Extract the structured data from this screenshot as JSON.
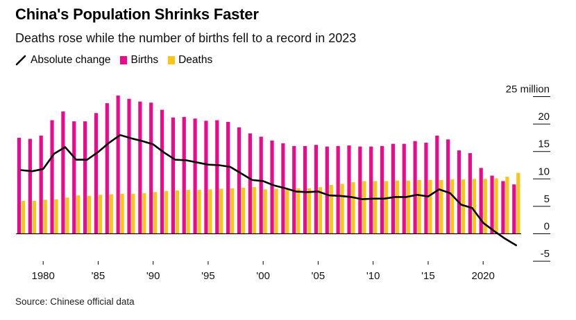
{
  "header": {
    "title": "China's Population Shrinks Faster",
    "subtitle": "Deaths rose while the number of births fell to a record in 2023"
  },
  "legend": {
    "items": [
      {
        "label": "Absolute change",
        "kind": "line",
        "color": "#000000"
      },
      {
        "label": "Births",
        "kind": "bar",
        "color": "#ec0a8c"
      },
      {
        "label": "Deaths",
        "kind": "bar",
        "color": "#f9c519"
      }
    ]
  },
  "source": "Source: Chinese official data",
  "chart_data": {
    "type": "bar",
    "title": "China's Population Shrinks Faster",
    "subtitle": "Deaths rose while the number of births fell to a record in 2023",
    "unit_label": "25 million",
    "x": [
      1978,
      1979,
      1980,
      1981,
      1982,
      1983,
      1984,
      1985,
      1986,
      1987,
      1988,
      1989,
      1990,
      1991,
      1992,
      1993,
      1994,
      1995,
      1996,
      1997,
      1998,
      1999,
      2000,
      2001,
      2002,
      2003,
      2004,
      2005,
      2006,
      2007,
      2008,
      2009,
      2010,
      2011,
      2012,
      2013,
      2014,
      2015,
      2016,
      2017,
      2018,
      2019,
      2020,
      2021,
      2022,
      2023
    ],
    "x_tick_values": [
      1980,
      1985,
      1990,
      1995,
      2000,
      2005,
      2010,
      2015,
      2020
    ],
    "x_tick_labels": [
      "1980",
      "'85",
      "'90",
      "'95",
      "'00",
      "'05",
      "'10",
      "'15",
      "2020"
    ],
    "y_tick_values": [
      -5,
      0,
      5,
      10,
      15,
      20,
      25
    ],
    "y_tick_labels": [
      "-5",
      "0",
      "5",
      "10",
      "15",
      "20",
      "25 million"
    ],
    "ylim": [
      -5,
      25
    ],
    "series": [
      {
        "name": "Births",
        "type": "bar",
        "color": "#ec0a8c",
        "values": [
          17.5,
          17.3,
          17.9,
          20.7,
          22.3,
          20.5,
          20.5,
          22.0,
          23.8,
          25.2,
          24.6,
          24.1,
          23.9,
          22.6,
          21.2,
          21.3,
          21.0,
          20.6,
          20.7,
          20.4,
          19.4,
          18.3,
          17.7,
          17.0,
          16.5,
          16.0,
          16.0,
          16.2,
          15.9,
          16.0,
          16.1,
          15.9,
          15.9,
          16.0,
          16.4,
          16.4,
          16.9,
          16.6,
          17.9,
          17.2,
          15.2,
          14.7,
          12.0,
          10.6,
          9.6,
          9.0
        ]
      },
      {
        "name": "Deaths",
        "type": "bar",
        "color": "#f9c519",
        "values": [
          6.0,
          6.0,
          6.2,
          6.3,
          6.6,
          7.0,
          6.9,
          7.1,
          7.2,
          7.3,
          7.3,
          7.4,
          7.6,
          7.8,
          7.9,
          8.0,
          8.0,
          8.1,
          8.2,
          8.3,
          8.4,
          8.5,
          8.1,
          8.2,
          8.3,
          8.3,
          8.3,
          8.5,
          8.9,
          9.1,
          9.4,
          9.6,
          9.6,
          9.6,
          9.7,
          9.7,
          9.8,
          9.8,
          9.8,
          9.9,
          9.9,
          10.0,
          10.0,
          10.1,
          10.4,
          11.1
        ]
      },
      {
        "name": "Absolute change",
        "type": "line",
        "color": "#000000",
        "values": [
          11.6,
          11.4,
          11.8,
          14.6,
          15.8,
          13.5,
          13.5,
          14.9,
          16.6,
          18.0,
          17.4,
          16.9,
          16.3,
          14.8,
          13.5,
          13.4,
          13.0,
          12.6,
          12.5,
          12.2,
          11.0,
          9.8,
          9.6,
          8.8,
          8.3,
          7.7,
          7.6,
          7.7,
          7.0,
          6.9,
          6.7,
          6.3,
          6.4,
          6.4,
          6.7,
          6.7,
          7.1,
          6.8,
          8.1,
          7.4,
          5.3,
          4.7,
          2.0,
          0.5,
          -0.9,
          -2.1
        ]
      }
    ],
    "grid": false,
    "legend_position": "top-left"
  }
}
